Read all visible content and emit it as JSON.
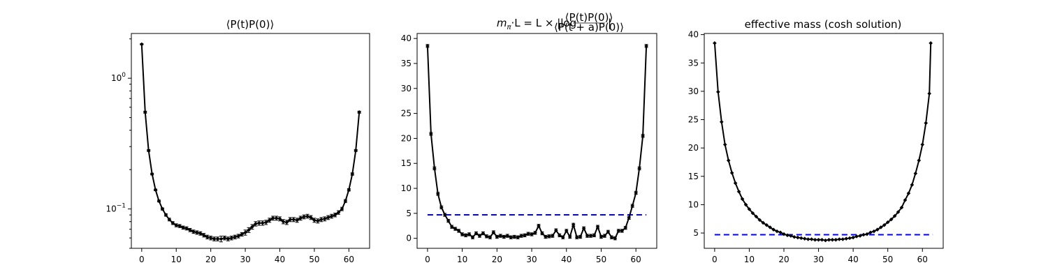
{
  "chart_data": [
    {
      "type": "line",
      "title": "⟨P(t)P(0)⟩",
      "yscale": "log",
      "xlim": [
        -3,
        66
      ],
      "ylim": [
        0.05,
        2.2
      ],
      "xticks": [
        0,
        10,
        20,
        30,
        40,
        50,
        60
      ],
      "yticks": [
        {
          "value": 1,
          "label": "10^0"
        },
        {
          "value": 0.1,
          "label": "10^-1"
        }
      ],
      "x": [
        0,
        1,
        2,
        3,
        4,
        5,
        6,
        7,
        8,
        9,
        10,
        11,
        12,
        13,
        14,
        15,
        16,
        17,
        18,
        19,
        20,
        21,
        22,
        23,
        24,
        25,
        26,
        27,
        28,
        29,
        30,
        31,
        32,
        33,
        34,
        35,
        36,
        37,
        38,
        39,
        40,
        41,
        42,
        43,
        44,
        45,
        46,
        47,
        48,
        49,
        50,
        51,
        52,
        53,
        54,
        55,
        56,
        57,
        58,
        59,
        60,
        61,
        62,
        63
      ],
      "values": [
        1.82,
        0.55,
        0.28,
        0.185,
        0.14,
        0.115,
        0.1,
        0.09,
        0.083,
        0.078,
        0.075,
        0.074,
        0.072,
        0.071,
        0.069,
        0.067,
        0.066,
        0.065,
        0.063,
        0.061,
        0.06,
        0.059,
        0.059,
        0.059,
        0.06,
        0.059,
        0.06,
        0.061,
        0.062,
        0.064,
        0.066,
        0.069,
        0.073,
        0.077,
        0.078,
        0.078,
        0.079,
        0.082,
        0.085,
        0.085,
        0.084,
        0.08,
        0.079,
        0.083,
        0.083,
        0.082,
        0.085,
        0.087,
        0.088,
        0.086,
        0.082,
        0.081,
        0.083,
        0.084,
        0.086,
        0.088,
        0.09,
        0.094,
        0.1,
        0.115,
        0.14,
        0.185,
        0.28,
        0.55
      ],
      "errors": [
        0.02,
        0.01,
        0.005,
        0.003,
        0.002,
        0.002,
        0.002,
        0.002,
        0.002,
        0.002,
        0.002,
        0.002,
        0.002,
        0.002,
        0.002,
        0.002,
        0.002,
        0.002,
        0.002,
        0.002,
        0.002,
        0.002,
        0.002,
        0.003,
        0.002,
        0.002,
        0.002,
        0.002,
        0.002,
        0.002,
        0.003,
        0.003,
        0.003,
        0.003,
        0.003,
        0.003,
        0.003,
        0.003,
        0.003,
        0.003,
        0.003,
        0.003,
        0.003,
        0.003,
        0.003,
        0.003,
        0.003,
        0.003,
        0.003,
        0.003,
        0.003,
        0.003,
        0.003,
        0.003,
        0.003,
        0.003,
        0.003,
        0.003,
        0.003,
        0.003,
        0.003,
        0.004,
        0.005,
        0.01
      ],
      "color": "#000000",
      "grid": false
    },
    {
      "type": "line",
      "title": "m_π·L = L × |log ⟨P(t)P(0)⟩ / ⟨P(t+a)P(0)⟩|",
      "title_parts": {
        "lhs": "m",
        "lhs_sub": "π",
        "mid": "·L = L × |log",
        "num": "⟨P(t)P(0)⟩",
        "den": "⟨P(t + a)P(0)⟩",
        "end": "|"
      },
      "yscale": "linear",
      "xlim": [
        -3,
        66
      ],
      "ylim": [
        -2,
        41
      ],
      "xticks": [
        0,
        10,
        20,
        30,
        40,
        50,
        60
      ],
      "yticks": [
        0,
        5,
        10,
        15,
        20,
        25,
        30,
        35,
        40
      ],
      "x": [
        0,
        1,
        2,
        3,
        4,
        5,
        6,
        7,
        8,
        9,
        10,
        11,
        12,
        13,
        14,
        15,
        16,
        17,
        18,
        19,
        20,
        21,
        22,
        23,
        24,
        25,
        26,
        27,
        28,
        29,
        30,
        31,
        32,
        33,
        34,
        35,
        36,
        37,
        38,
        39,
        40,
        41,
        42,
        43,
        44,
        45,
        46,
        47,
        48,
        49,
        50,
        51,
        52,
        53,
        54,
        55,
        56,
        57,
        58,
        59,
        60,
        61,
        62,
        63
      ],
      "values": [
        38.5,
        20.9,
        14.0,
        8.9,
        6.2,
        4.7,
        3.5,
        2.3,
        1.9,
        1.5,
        0.8,
        0.6,
        0.8,
        0.2,
        1.0,
        0.5,
        1.0,
        0.4,
        0.2,
        1.2,
        0.3,
        0.5,
        0.3,
        0.5,
        0.2,
        0.3,
        0.2,
        0.5,
        0.6,
        0.9,
        0.8,
        1.1,
        2.5,
        1.0,
        0.3,
        0.4,
        0.5,
        1.6,
        0.6,
        0.2,
        1.5,
        0.3,
        2.7,
        0.2,
        0.3,
        2.0,
        0.5,
        0.5,
        0.6,
        2.3,
        0.3,
        0.5,
        1.3,
        0.2,
        0.0,
        1.5,
        1.5,
        2.1,
        4.1,
        6.5,
        9.1,
        14.0,
        20.5,
        38.5
      ],
      "errors": [
        0.3,
        0.3,
        0.3,
        0.3,
        0.3,
        0.3,
        0.3,
        0.3,
        0.3,
        0.3,
        0.3,
        0.3,
        0.3,
        0.3,
        0.3,
        0.3,
        0.3,
        0.3,
        0.3,
        0.3,
        0.3,
        0.3,
        0.3,
        0.3,
        0.3,
        0.3,
        0.3,
        0.3,
        0.3,
        0.3,
        0.3,
        0.3,
        0.3,
        0.3,
        0.3,
        0.3,
        0.3,
        0.3,
        0.3,
        0.3,
        0.3,
        0.3,
        0.3,
        0.3,
        0.3,
        0.3,
        0.3,
        0.3,
        0.3,
        0.3,
        0.3,
        0.3,
        0.3,
        0.3,
        0.3,
        0.3,
        0.3,
        0.3,
        0.3,
        0.3,
        0.3,
        0.3,
        0.3,
        0.3
      ],
      "reference_line": {
        "y": 4.7,
        "x_from": 0,
        "x_to": 63,
        "color": "#0000ff",
        "style": "dashed"
      },
      "color": "#000000",
      "grid": false
    },
    {
      "type": "line",
      "title": "effective mass (cosh solution)",
      "yscale": "linear",
      "xlim": [
        -3,
        66
      ],
      "ylim": [
        2.3,
        40.2
      ],
      "xticks": [
        0,
        10,
        20,
        30,
        40,
        50,
        60
      ],
      "yticks": [
        5,
        10,
        15,
        20,
        25,
        30,
        35,
        40
      ],
      "x": [
        0,
        1,
        2,
        3,
        4,
        5,
        6,
        7,
        8,
        9,
        10,
        11,
        12,
        13,
        14,
        15,
        16,
        17,
        18,
        19,
        20,
        21,
        22,
        23,
        24,
        25,
        26,
        27,
        28,
        29,
        30,
        31,
        32,
        33,
        34,
        35,
        36,
        37,
        38,
        39,
        40,
        41,
        42,
        43,
        44,
        45,
        46,
        47,
        48,
        49,
        50,
        51,
        52,
        53,
        54,
        55,
        56,
        57,
        58,
        59,
        60,
        61,
        62
      ],
      "values": [
        38.5,
        29.9,
        24.6,
        20.6,
        17.8,
        15.6,
        13.8,
        12.3,
        11.0,
        10.0,
        9.2,
        8.5,
        7.9,
        7.3,
        6.8,
        6.4,
        6.0,
        5.6,
        5.3,
        5.1,
        4.8,
        4.6,
        4.5,
        4.3,
        4.2,
        4.1,
        4.0,
        3.9,
        3.9,
        3.8,
        3.8,
        3.8,
        3.7,
        3.8,
        3.8,
        3.8,
        3.9,
        3.9,
        4.0,
        4.1,
        4.2,
        4.4,
        4.5,
        4.7,
        4.8,
        5.1,
        5.3,
        5.6,
        6.0,
        6.4,
        6.9,
        7.4,
        8.0,
        8.7,
        9.5,
        10.8,
        12.0,
        13.5,
        15.5,
        17.8,
        20.6,
        24.4,
        29.6
      ],
      "last_point": {
        "x": 62.4,
        "y": 38.5
      },
      "reference_line": {
        "y": 4.7,
        "x_from": 0,
        "x_to": 63,
        "color": "#0000ff",
        "style": "dashed"
      },
      "color": "#000000",
      "grid": false
    }
  ]
}
